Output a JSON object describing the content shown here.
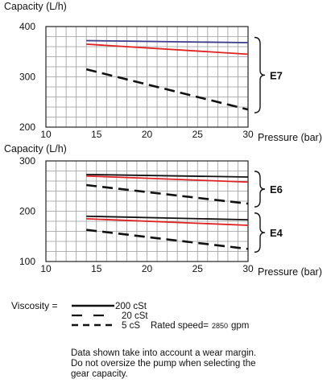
{
  "chart_data": [
    {
      "type": "line",
      "ylabel": "Capacity (L/h)",
      "xlabel": "Pressure (bar)",
      "xlim": [
        10,
        30
      ],
      "ylim": [
        200,
        400
      ],
      "x_ticks": [
        10,
        15,
        20,
        25,
        30
      ],
      "y_ticks": [
        200,
        300,
        400
      ],
      "grid": true,
      "groups": [
        {
          "label": "E7",
          "series": [
            {
              "viscosity": "200 cSt",
              "color": "#3a3a8c",
              "dash": "solid",
              "x": [
                14,
                30
              ],
              "y": [
                372,
                368
              ]
            },
            {
              "viscosity": "20 cSt",
              "color": "#e02020",
              "dash": "solid",
              "x": [
                14,
                30
              ],
              "y": [
                365,
                345
              ]
            },
            {
              "viscosity": "5 cS",
              "color": "#111111",
              "dash": "dashed",
              "x": [
                14,
                30
              ],
              "y": [
                315,
                235
              ]
            }
          ]
        }
      ]
    },
    {
      "type": "line",
      "ylabel": "Capacity (L/h)",
      "xlabel": "Pressure (bar)",
      "xlim": [
        10,
        30
      ],
      "ylim": [
        100,
        300
      ],
      "x_ticks": [
        10,
        15,
        20,
        25,
        30
      ],
      "y_ticks": [
        100,
        200,
        300
      ],
      "grid": true,
      "groups": [
        {
          "label": "E6",
          "series": [
            {
              "viscosity": "200 cSt",
              "color": "#111111",
              "dash": "solid",
              "x": [
                14,
                30
              ],
              "y": [
                273,
                268
              ]
            },
            {
              "viscosity": "20 cSt",
              "color": "#e02020",
              "dash": "solid",
              "x": [
                14,
                30
              ],
              "y": [
                270,
                258
              ]
            },
            {
              "viscosity": "5 cS",
              "color": "#111111",
              "dash": "dashed",
              "x": [
                14,
                30
              ],
              "y": [
                252,
                215
              ]
            }
          ]
        },
        {
          "label": "E4",
          "series": [
            {
              "viscosity": "200 cSt",
              "color": "#111111",
              "dash": "solid",
              "x": [
                14,
                30
              ],
              "y": [
                190,
                183
              ]
            },
            {
              "viscosity": "20 cSt",
              "color": "#e02020",
              "dash": "solid",
              "x": [
                14,
                30
              ],
              "y": [
                185,
                172
              ]
            },
            {
              "viscosity": "5 cS",
              "color": "#111111",
              "dash": "dashed",
              "x": [
                14,
                30
              ],
              "y": [
                163,
                125
              ]
            }
          ]
        }
      ]
    }
  ],
  "legend": {
    "title": "Viscosity =",
    "entries": [
      {
        "label": "200 cSt",
        "dash": "solid"
      },
      {
        "label": "20 cSt",
        "dash": "dashed-long"
      },
      {
        "label": "5 cS",
        "dash": "dashed"
      }
    ],
    "rated_speed_label": "Rated speed=",
    "rated_speed_value": "2850",
    "rated_speed_unit": "gpm"
  },
  "footnote": [
    "Data shown take into account a wear margin.",
    "Do not oversize the pump when selecting the",
    "gear capacity."
  ]
}
